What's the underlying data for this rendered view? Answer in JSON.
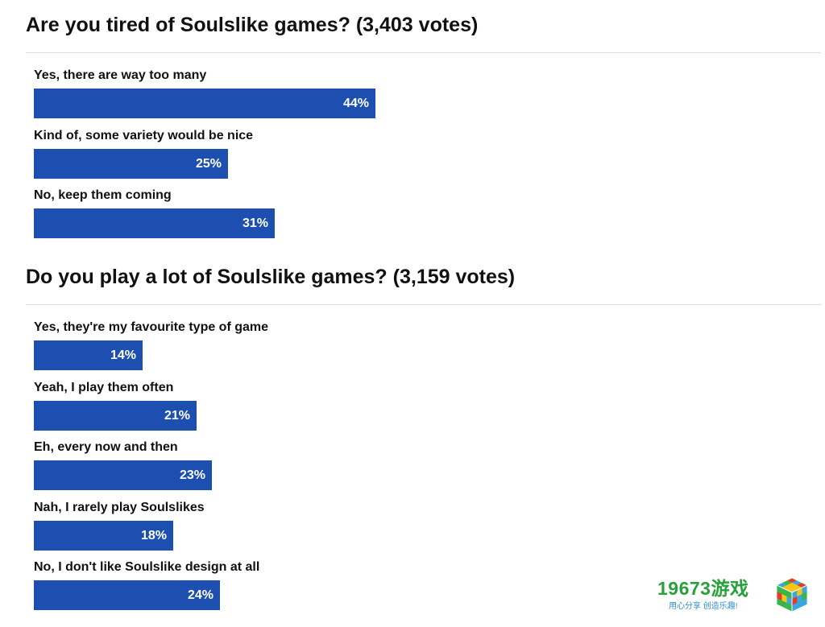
{
  "chart_data": [
    {
      "type": "bar",
      "title": "Are you tired of Soulslike games? (3,403 votes)",
      "categories": [
        "Yes, there are way too many",
        "Kind of, some variety would be nice",
        "No, keep them coming"
      ],
      "values": [
        44,
        25,
        31
      ],
      "value_labels": [
        "44%",
        "25%",
        "31%"
      ],
      "orientation": "horizontal",
      "xlim": [
        0,
        100
      ],
      "unit": "%",
      "grid": false,
      "bar_color": "#1d4fb0"
    },
    {
      "type": "bar",
      "title": "Do you play a lot of Soulslike games? (3,159 votes)",
      "categories": [
        "Yes, they're my favourite type of game",
        "Yeah, I play them often",
        "Eh, every now and then",
        "Nah, I rarely play Soulslikes",
        "No, I don't like Soulslike design at all"
      ],
      "values": [
        14,
        21,
        23,
        18,
        24
      ],
      "value_labels": [
        "14%",
        "21%",
        "23%",
        "18%",
        "24%"
      ],
      "orientation": "horizontal",
      "xlim": [
        0,
        100
      ],
      "unit": "%",
      "grid": false,
      "bar_color": "#1d4fb0"
    }
  ],
  "watermark": {
    "brand": "19673游戏",
    "slogan": "用心分享  创造乐趣!",
    "brand_color": "#27a13a",
    "slogan_color": "#2f8fd0",
    "icon": "rubik-cube-logo"
  }
}
